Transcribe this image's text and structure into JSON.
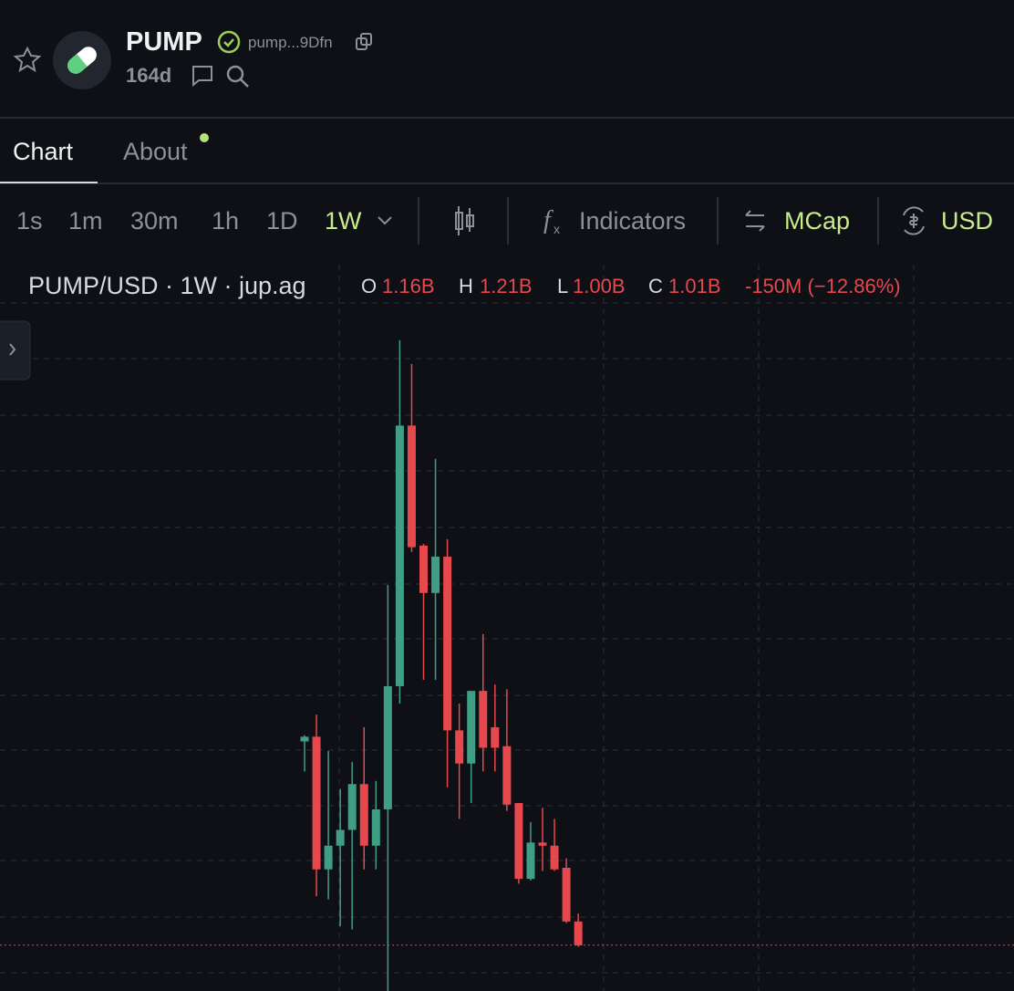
{
  "header": {
    "name": "PUMP",
    "address": "pump...9Dfn",
    "age": "164d"
  },
  "tabs": [
    "Chart",
    "About"
  ],
  "toolbar": {
    "intervals": [
      "1s",
      "1m",
      "30m",
      "1h",
      "1D",
      "1W"
    ],
    "indicators": "Indicators",
    "mcap": "MCap",
    "currency": "USD"
  },
  "legend": {
    "symbol": "PUMP/USD · 1W · jup.ag",
    "open_label": "O",
    "open": "1.16B",
    "high_label": "H",
    "high": "1.21B",
    "low_label": "L",
    "low": "1.00B",
    "close_label": "C",
    "close": "1.01B",
    "change": "-150M (−12.86%)"
  },
  "chart_data": {
    "type": "candlestick",
    "open": [
      2.3,
      2.33,
      1.49,
      1.64,
      1.74,
      2.03,
      1.64,
      1.87,
      2.65,
      4.3,
      3.54,
      3.24,
      3.47,
      2.37,
      2.16,
      2.62,
      2.39,
      2.27,
      1.91,
      1.43,
      1.66,
      1.64,
      1.5,
      1.16
    ],
    "high": [
      2.34,
      2.47,
      2.24,
      2.0,
      2.17,
      2.39,
      2.05,
      3.29,
      4.84,
      4.69,
      3.55,
      4.09,
      3.58,
      2.54,
      2.62,
      2.98,
      2.66,
      2.63,
      1.91,
      1.79,
      1.88,
      1.81,
      1.56,
      1.21
    ],
    "low": [
      2.11,
      1.32,
      1.3,
      1.13,
      1.11,
      1.49,
      1.49,
      0.72,
      2.54,
      3.5,
      2.69,
      2.69,
      2.01,
      1.81,
      1.91,
      2.11,
      2.11,
      1.86,
      1.4,
      1.42,
      1.48,
      1.48,
      1.15,
      1.0
    ],
    "close": [
      2.33,
      1.49,
      1.64,
      1.74,
      2.03,
      1.64,
      1.87,
      2.65,
      4.3,
      3.53,
      3.24,
      3.47,
      2.37,
      2.16,
      2.62,
      2.26,
      2.26,
      1.9,
      1.43,
      1.66,
      1.64,
      1.49,
      1.16,
      1.01
    ],
    "ylim": [
      0.72,
      5.03
    ],
    "up_color": "#3f9e83",
    "down_color": "#e5484d"
  }
}
